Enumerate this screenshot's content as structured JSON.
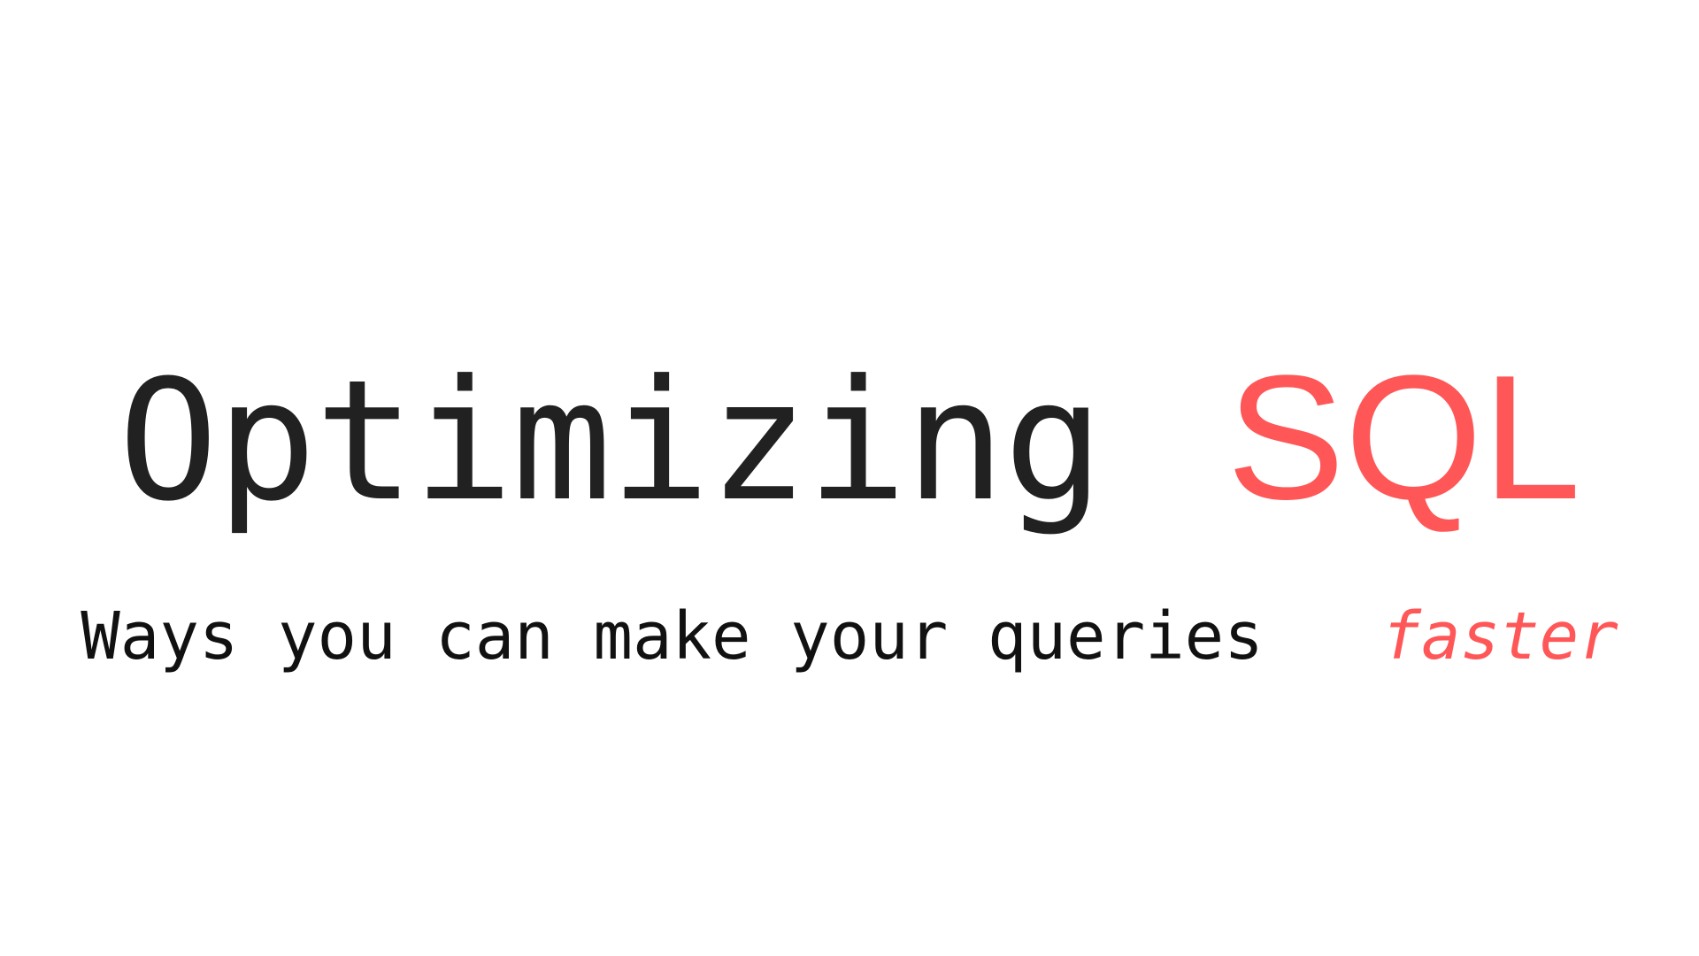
{
  "title": {
    "main": "Optimizing",
    "accent": "SQL"
  },
  "subtitle": {
    "main": "Ways you can make your queries",
    "accent": "faster"
  },
  "colors": {
    "text": "#212121",
    "accent": "#ff5757",
    "background": "#ffffff"
  }
}
